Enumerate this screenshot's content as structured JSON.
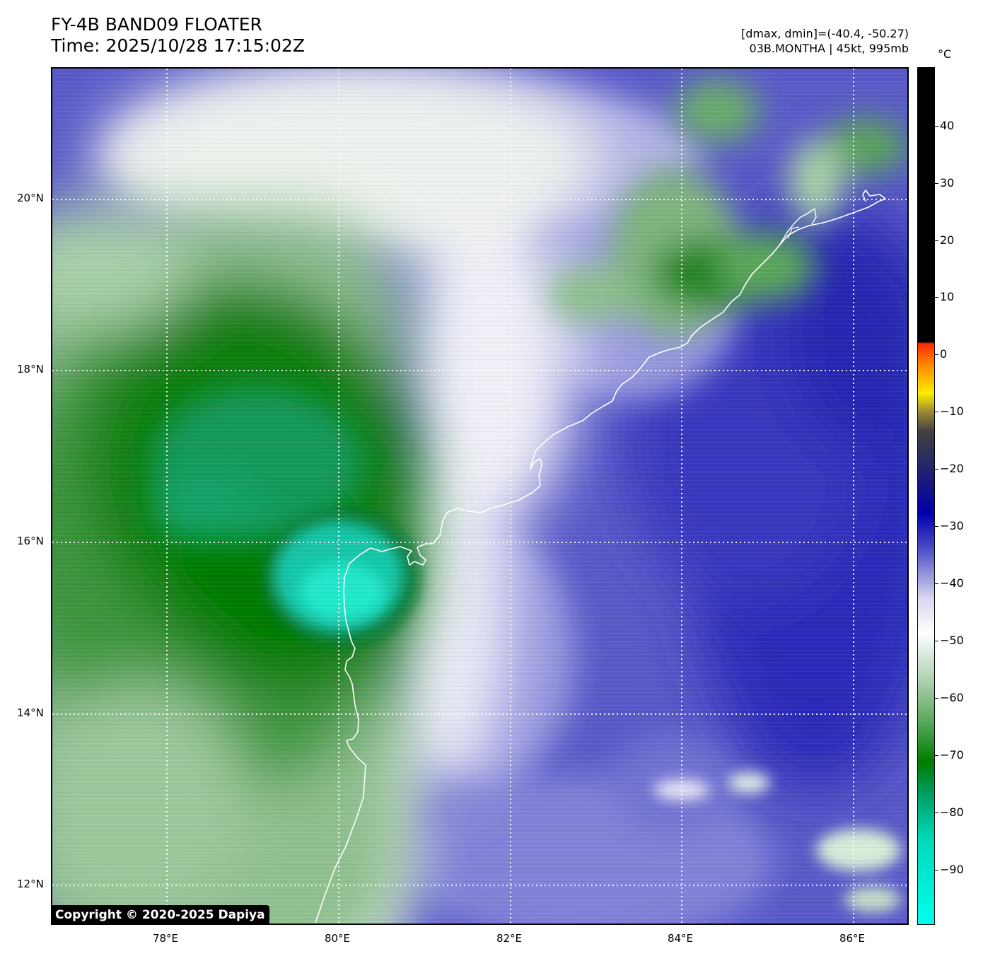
{
  "title": {
    "line1": "FY-4B BAND09 FLOATER",
    "line2": "Time: 2025/10/28 17:15:02Z"
  },
  "meta": {
    "range": "[dmax, dmin]=(-40.4, -50.27)",
    "storm": "03B.MONTHA | 45kt, 995mb"
  },
  "copyright": "Copyright © 2020-2025 Dapiya",
  "colorbar": {
    "unit": "°C",
    "ticks": [
      "40",
      "30",
      "20",
      "10",
      "0",
      "−10",
      "−20",
      "−30",
      "−40",
      "−50",
      "−60",
      "−70",
      "−80",
      "−90"
    ],
    "colors": {
      "warm": "#000000",
      "hot": "#ff2a00",
      "yellow": "#ffee00",
      "blue": "#0000aa",
      "white": "#ffffff",
      "green": "#007a00",
      "cyan": "#00ffee"
    }
  },
  "axes": {
    "lat_labels": [
      "20°N",
      "18°N",
      "16°N",
      "14°N",
      "12°N"
    ],
    "lon_labels": [
      "78°E",
      "80°E",
      "82°E",
      "84°E",
      "86°E"
    ]
  }
}
